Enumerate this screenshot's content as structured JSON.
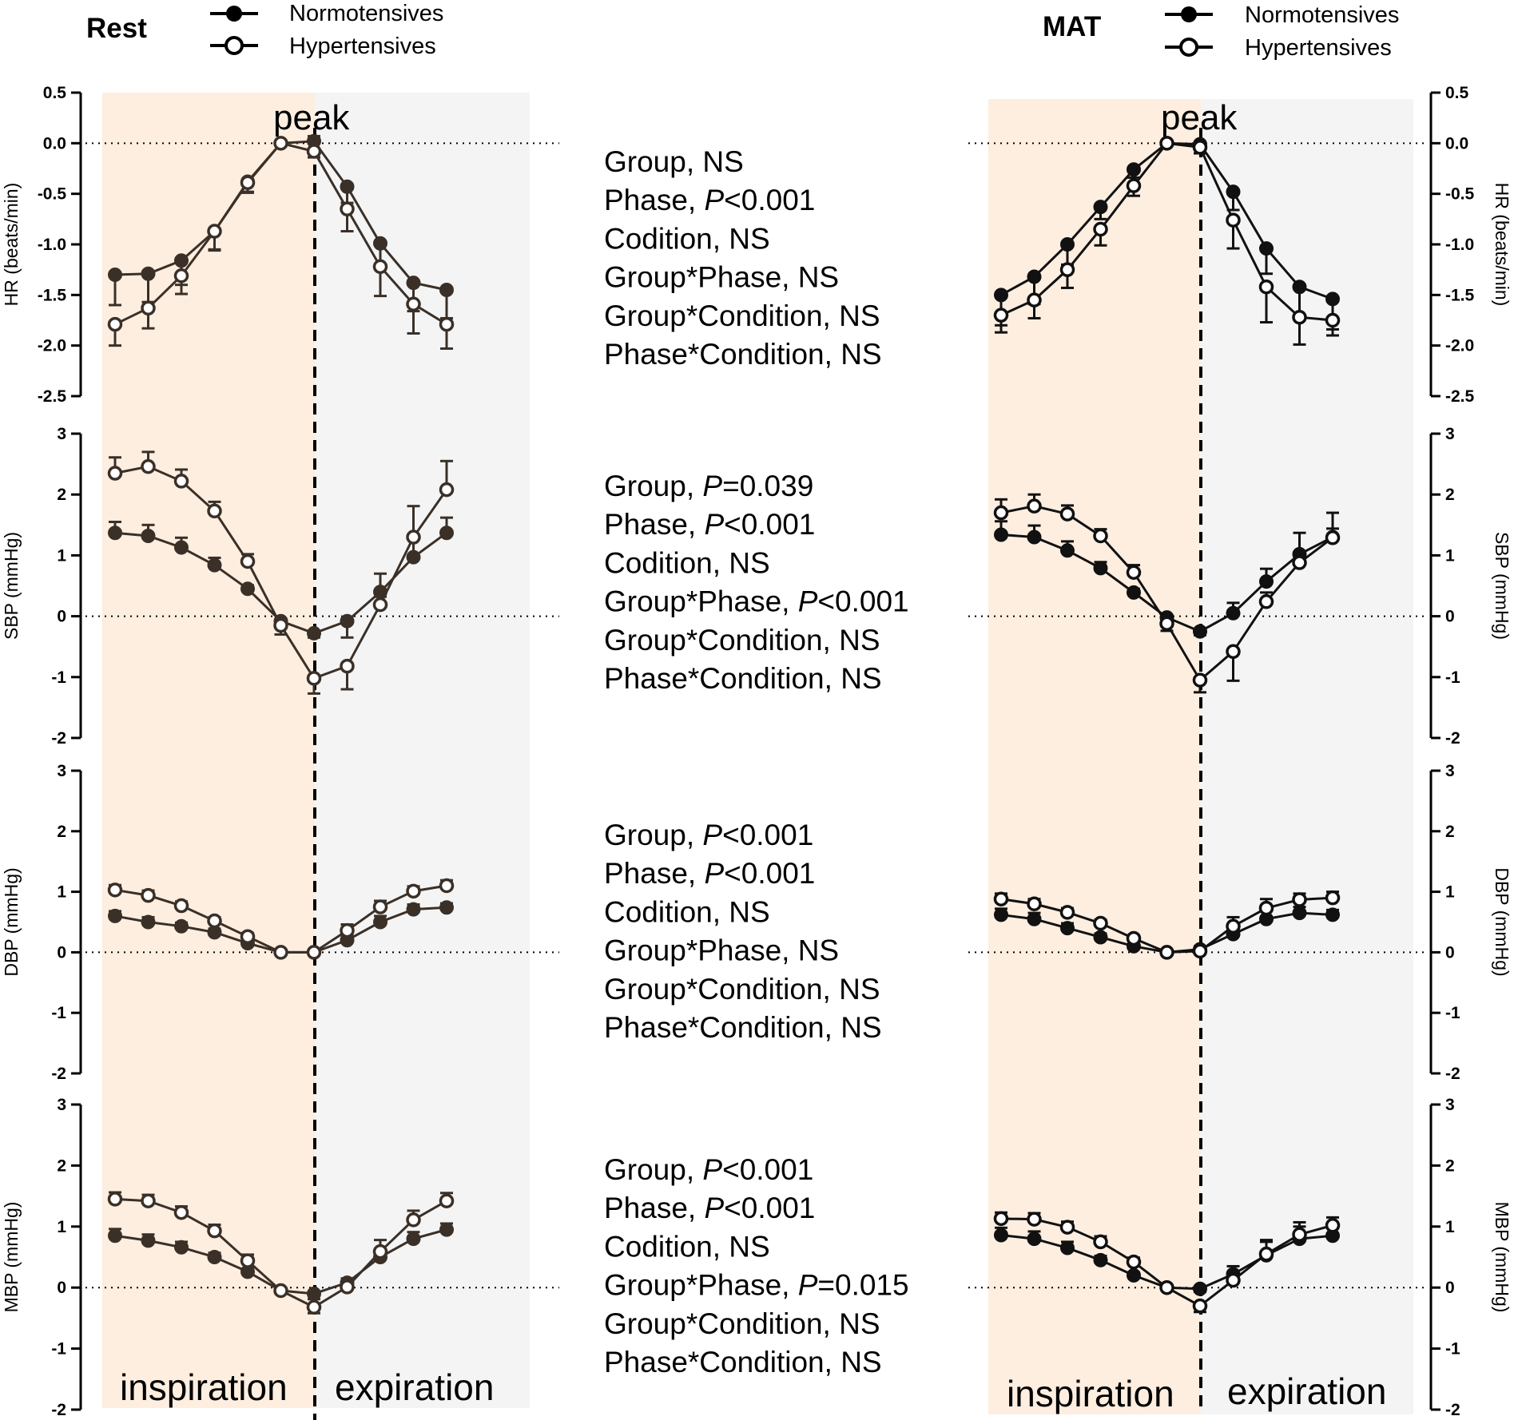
{
  "colors": {
    "inspiration_bg": "#fdeee0",
    "expiration_bg": "#f4f4f4",
    "rest_series": "#3a3028",
    "mat_series": "#111111",
    "axis": "#000000"
  },
  "legend": {
    "normotensives": "Normotensives",
    "hypertensives": "Hypertensives"
  },
  "panels": {
    "rest": {
      "title": "Rest"
    },
    "mat": {
      "title": "MAT"
    }
  },
  "labels": {
    "peak": "peak",
    "inspiration": "inspiration",
    "expiration": "expiration"
  },
  "stats": {
    "hr": [
      {
        "text": "Group, NS"
      },
      {
        "pre": "Phase, ",
        "p": "P",
        "post": "<0.001"
      },
      {
        "text": "Codition, NS"
      },
      {
        "text": "Group*Phase, NS"
      },
      {
        "text": "Group*Condition, NS"
      },
      {
        "text": "Phase*Condition, NS"
      }
    ],
    "sbp": [
      {
        "pre": "Group, ",
        "p": "P",
        "post": "=0.039"
      },
      {
        "pre": "Phase, ",
        "p": "P",
        "post": "<0.001"
      },
      {
        "text": "Codition, NS"
      },
      {
        "pre": "Group*Phase, ",
        "p": "P",
        "post": "<0.001"
      },
      {
        "text": "Group*Condition, NS"
      },
      {
        "text": "Phase*Condition, NS"
      }
    ],
    "dbp": [
      {
        "pre": "Group, ",
        "p": "P",
        "post": "<0.001"
      },
      {
        "pre": "Phase, ",
        "p": "P",
        "post": "<0.001"
      },
      {
        "text": "Codition, NS"
      },
      {
        "text": "Group*Phase, NS"
      },
      {
        "text": "Group*Condition, NS"
      },
      {
        "text": "Phase*Condition, NS"
      }
    ],
    "mbp": [
      {
        "pre": "Group, ",
        "p": "P",
        "post": "<0.001"
      },
      {
        "pre": "Phase, ",
        "p": "P",
        "post": "<0.001"
      },
      {
        "text": "Codition, NS"
      },
      {
        "pre": "Group*Phase,  ",
        "p": "P",
        "post": "=0.015"
      },
      {
        "text": "Group*Condition, NS"
      },
      {
        "text": "Phase*Condition, NS"
      }
    ]
  },
  "chart_data": [
    {
      "type": "line",
      "condition": "Rest",
      "title": "Rest",
      "ylabel": "HR (beats/min)",
      "ylim": [
        -2.5,
        0.5
      ],
      "yticks": [
        "0.5",
        "0.0",
        "-0.5",
        "-1.0",
        "-1.5",
        "-2.0",
        "-2.5"
      ],
      "x": [
        -5,
        -4,
        -3,
        -2,
        -1,
        0,
        1,
        2,
        3,
        4,
        5
      ],
      "series": [
        {
          "name": "Normotensives",
          "values": [
            -1.3,
            -1.29,
            -1.16,
            -0.87,
            -0.38,
            0.0,
            0.02,
            -0.43,
            -0.99,
            -1.38,
            -1.45
          ],
          "err": [
            0.3,
            0.28,
            0.24,
            0.19,
            0.1,
            0.0,
            0.05,
            0.16,
            0.23,
            0.28,
            0.28
          ]
        },
        {
          "name": "Hypertensives",
          "values": [
            -1.79,
            -1.63,
            -1.31,
            -0.87,
            -0.39,
            0.0,
            -0.08,
            -0.65,
            -1.22,
            -1.59,
            -1.79
          ],
          "err": [
            0.21,
            0.2,
            0.18,
            0.18,
            0.1,
            0.0,
            0.06,
            0.22,
            0.29,
            0.29,
            0.24
          ]
        }
      ]
    },
    {
      "type": "line",
      "condition": "Rest",
      "ylabel": "SBP (mmHg)",
      "ylim": [
        -2,
        3
      ],
      "yticks": [
        "3",
        "2",
        "1",
        "0",
        "-1",
        "-2"
      ],
      "x": [
        -5,
        -4,
        -3,
        -2,
        -1,
        0,
        1,
        2,
        3,
        4,
        5
      ],
      "series": [
        {
          "name": "Normotensives",
          "values": [
            1.37,
            1.32,
            1.13,
            0.84,
            0.45,
            -0.08,
            -0.28,
            -0.08,
            0.4,
            0.97,
            1.37
          ],
          "err": [
            0.18,
            0.18,
            0.16,
            0.12,
            0.06,
            0.12,
            0.07,
            0.27,
            0.3,
            0.3,
            0.25
          ]
        },
        {
          "name": "Hypertensives",
          "values": [
            2.35,
            2.46,
            2.22,
            1.73,
            0.9,
            -0.15,
            -1.02,
            -0.82,
            0.19,
            1.3,
            2.08
          ],
          "err": [
            0.26,
            0.24,
            0.19,
            0.15,
            0.12,
            0.15,
            0.25,
            0.38,
            0.13,
            0.51,
            0.47
          ]
        }
      ]
    },
    {
      "type": "line",
      "condition": "Rest",
      "ylabel": "DBP (mmHg)",
      "ylim": [
        -2,
        3
      ],
      "yticks": [
        "3",
        "2",
        "1",
        "0",
        "-1",
        "-2"
      ],
      "x": [
        -5,
        -4,
        -3,
        -2,
        -1,
        0,
        1,
        2,
        3,
        4,
        5
      ],
      "series": [
        {
          "name": "Normotensives",
          "values": [
            0.6,
            0.5,
            0.43,
            0.33,
            0.15,
            0.0,
            0.0,
            0.2,
            0.5,
            0.71,
            0.74
          ],
          "err": [
            0.08,
            0.08,
            0.06,
            0.06,
            0.05,
            0.0,
            0.0,
            0.08,
            0.1,
            0.08,
            0.07
          ]
        },
        {
          "name": "Hypertensives",
          "values": [
            1.03,
            0.94,
            0.77,
            0.52,
            0.26,
            0.0,
            0.0,
            0.36,
            0.75,
            1.01,
            1.1
          ],
          "err": [
            0.08,
            0.08,
            0.07,
            0.06,
            0.06,
            0.0,
            0.0,
            0.1,
            0.1,
            0.08,
            0.09
          ]
        }
      ]
    },
    {
      "type": "line",
      "condition": "Rest",
      "ylabel": "MBP (mmHg)",
      "ylim": [
        -2,
        3
      ],
      "yticks": [
        "3",
        "2",
        "1",
        "0",
        "-1",
        "-2"
      ],
      "x": [
        -5,
        -4,
        -3,
        -2,
        -1,
        0,
        1,
        2,
        3,
        4,
        5
      ],
      "series": [
        {
          "name": "Normotensives",
          "values": [
            0.85,
            0.77,
            0.66,
            0.5,
            0.26,
            -0.05,
            -0.1,
            0.08,
            0.5,
            0.8,
            0.95
          ],
          "err": [
            0.11,
            0.1,
            0.09,
            0.07,
            0.05,
            0.05,
            0.09,
            0.07,
            0.1,
            0.11,
            0.1
          ]
        },
        {
          "name": "Hypertensives",
          "values": [
            1.45,
            1.42,
            1.23,
            0.93,
            0.44,
            -0.05,
            -0.32,
            0.01,
            0.59,
            1.11,
            1.42
          ],
          "err": [
            0.11,
            0.1,
            0.1,
            0.1,
            0.1,
            0.05,
            0.1,
            0.1,
            0.19,
            0.15,
            0.13
          ]
        }
      ]
    },
    {
      "type": "line",
      "condition": "MAT",
      "title": "MAT",
      "ylabel": "HR (beats/min)",
      "ylim": [
        -2.5,
        0.5
      ],
      "yticks": [
        "0.5",
        "0.0",
        "-0.5",
        "-1.0",
        "-1.5",
        "-2.0",
        "-2.5"
      ],
      "x": [
        -5,
        -4,
        -3,
        -2,
        -1,
        0,
        1,
        2,
        3,
        4,
        5
      ],
      "series": [
        {
          "name": "Normotensives",
          "values": [
            -1.5,
            -1.32,
            -1.0,
            -0.63,
            -0.26,
            0.0,
            -0.01,
            -0.48,
            -1.04,
            -1.42,
            -1.54
          ],
          "err": [
            0.3,
            0.27,
            0.2,
            0.12,
            0.08,
            0.0,
            0.02,
            0.18,
            0.25,
            0.29,
            0.3
          ]
        },
        {
          "name": "Hypertensives",
          "values": [
            -1.7,
            -1.55,
            -1.25,
            -0.85,
            -0.42,
            0.0,
            -0.04,
            -0.76,
            -1.42,
            -1.72,
            -1.75
          ],
          "err": [
            0.17,
            0.18,
            0.18,
            0.16,
            0.1,
            0.0,
            0.06,
            0.28,
            0.35,
            0.27,
            0.15
          ]
        }
      ]
    },
    {
      "type": "line",
      "condition": "MAT",
      "ylabel": "SBP (mmHg)",
      "ylim": [
        -2,
        3
      ],
      "yticks": [
        "3",
        "2",
        "1",
        "0",
        "-1",
        "-2"
      ],
      "x": [
        -5,
        -4,
        -3,
        -2,
        -1,
        0,
        1,
        2,
        3,
        4,
        5
      ],
      "series": [
        {
          "name": "Normotensives",
          "values": [
            1.34,
            1.3,
            1.08,
            0.79,
            0.39,
            -0.02,
            -0.25,
            0.05,
            0.57,
            1.02,
            1.3
          ],
          "err": [
            0.22,
            0.19,
            0.15,
            0.1,
            0.06,
            0.06,
            0.06,
            0.17,
            0.21,
            0.35,
            0.4
          ]
        },
        {
          "name": "Hypertensives",
          "values": [
            1.7,
            1.81,
            1.68,
            1.32,
            0.72,
            -0.12,
            -1.05,
            -0.58,
            0.24,
            0.88,
            1.29
          ],
          "err": [
            0.22,
            0.19,
            0.14,
            0.11,
            0.12,
            0.12,
            0.2,
            0.48,
            0.15,
            0.1,
            0.15
          ]
        }
      ]
    },
    {
      "type": "line",
      "condition": "MAT",
      "ylabel": "DBP (mmHg)",
      "ylim": [
        -2,
        3
      ],
      "yticks": [
        "3",
        "2",
        "1",
        "0",
        "-1",
        "-2"
      ],
      "x": [
        -5,
        -4,
        -3,
        -2,
        -1,
        0,
        1,
        2,
        3,
        4,
        5
      ],
      "series": [
        {
          "name": "Normotensives",
          "values": [
            0.62,
            0.55,
            0.4,
            0.25,
            0.1,
            0.0,
            0.05,
            0.3,
            0.55,
            0.65,
            0.62
          ],
          "err": [
            0.1,
            0.1,
            0.08,
            0.06,
            0.05,
            0.0,
            0.05,
            0.14,
            0.13,
            0.1,
            0.08
          ]
        },
        {
          "name": "Hypertensives",
          "values": [
            0.88,
            0.8,
            0.66,
            0.48,
            0.23,
            0.0,
            0.02,
            0.43,
            0.73,
            0.87,
            0.9
          ],
          "err": [
            0.09,
            0.08,
            0.07,
            0.06,
            0.05,
            0.0,
            0.03,
            0.15,
            0.15,
            0.1,
            0.1
          ]
        }
      ]
    },
    {
      "type": "line",
      "condition": "MAT",
      "ylabel": "MBP (mmHg)",
      "ylim": [
        -2,
        3
      ],
      "yticks": [
        "3",
        "2",
        "1",
        "0",
        "-1",
        "-2"
      ],
      "x": [
        -5,
        -4,
        -3,
        -2,
        -1,
        0,
        1,
        2,
        3,
        4,
        5
      ],
      "series": [
        {
          "name": "Normotensives",
          "values": [
            0.86,
            0.8,
            0.65,
            0.45,
            0.2,
            0.0,
            -0.02,
            0.22,
            0.53,
            0.8,
            0.85
          ],
          "err": [
            0.12,
            0.12,
            0.1,
            0.07,
            0.05,
            0.0,
            0.05,
            0.13,
            0.25,
            0.2,
            0.12
          ]
        },
        {
          "name": "Hypertensives",
          "values": [
            1.13,
            1.12,
            0.99,
            0.75,
            0.42,
            0.0,
            -0.3,
            0.12,
            0.55,
            0.87,
            1.02
          ],
          "err": [
            0.1,
            0.1,
            0.09,
            0.09,
            0.07,
            0.0,
            0.1,
            0.1,
            0.2,
            0.2,
            0.13
          ]
        }
      ]
    }
  ]
}
